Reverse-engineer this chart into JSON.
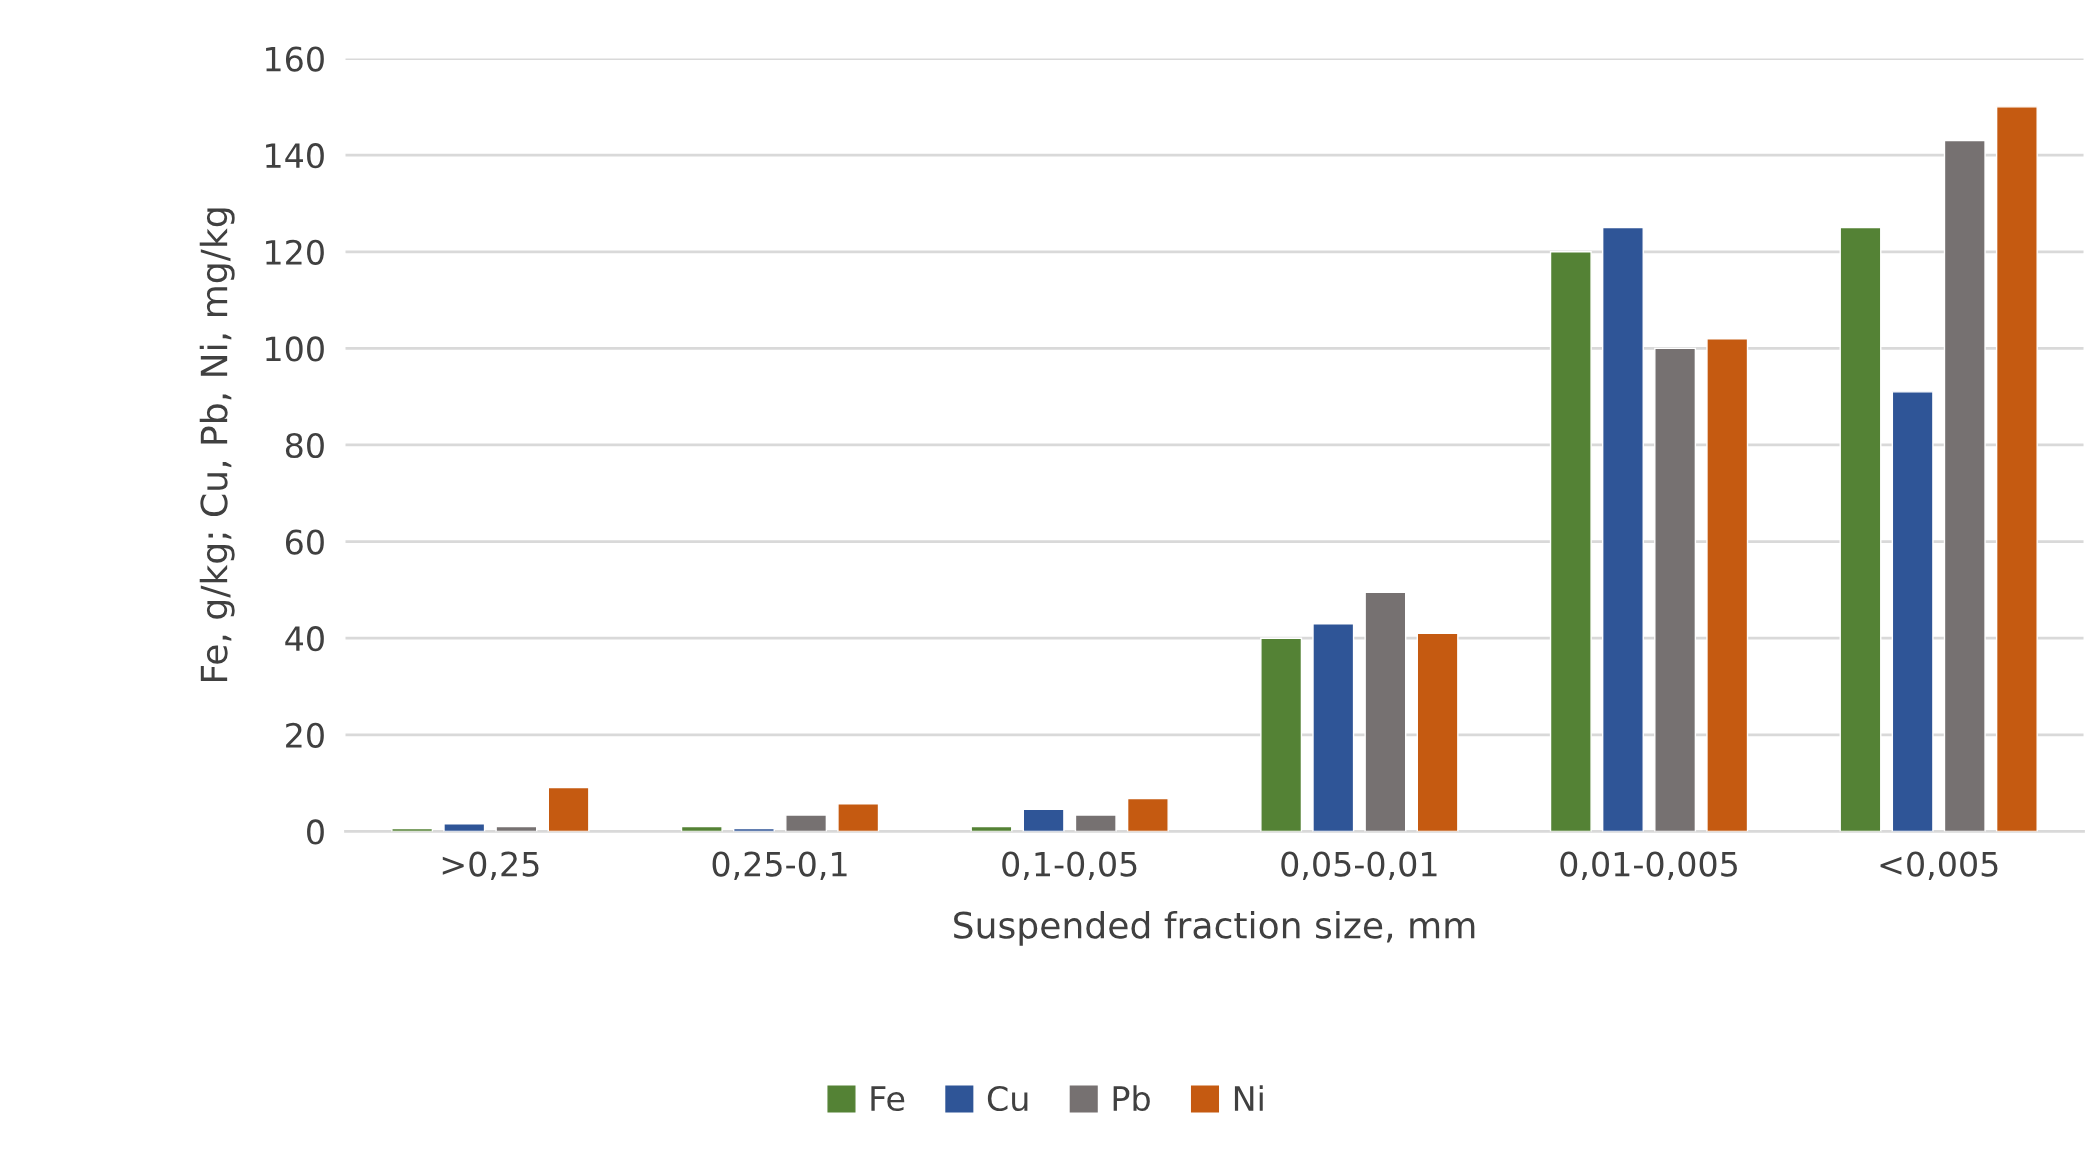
{
  "chart_data": {
    "type": "bar",
    "xlabel": "Suspended fraction size, mm",
    "ylabel": "Fe, g/kg; Cu, Pb, Ni, mg/kg",
    "categories": [
      ">0,25",
      "0,25-0,1",
      "0,1-0,05",
      "0,05-0,01",
      "0,01-0,005",
      "<0,005"
    ],
    "series": [
      {
        "name": "Fe",
        "color": "#548235",
        "values": [
          0.6,
          1,
          1,
          40,
          120,
          125
        ]
      },
      {
        "name": "Cu",
        "color": "#2f5597",
        "values": [
          1.6,
          0.6,
          4.6,
          43,
          125,
          91
        ]
      },
      {
        "name": "Pb",
        "color": "#767171",
        "values": [
          1,
          3.4,
          3.4,
          49.5,
          100,
          143
        ]
      },
      {
        "name": "Ni",
        "color": "#c55a11",
        "values": [
          9.1,
          5.7,
          6.8,
          41,
          102,
          150
        ]
      }
    ],
    "ylim": [
      0,
      160
    ],
    "yticks": [
      0,
      20,
      40,
      60,
      80,
      100,
      120,
      140,
      160
    ],
    "grid": "y",
    "legend": "bottom"
  }
}
